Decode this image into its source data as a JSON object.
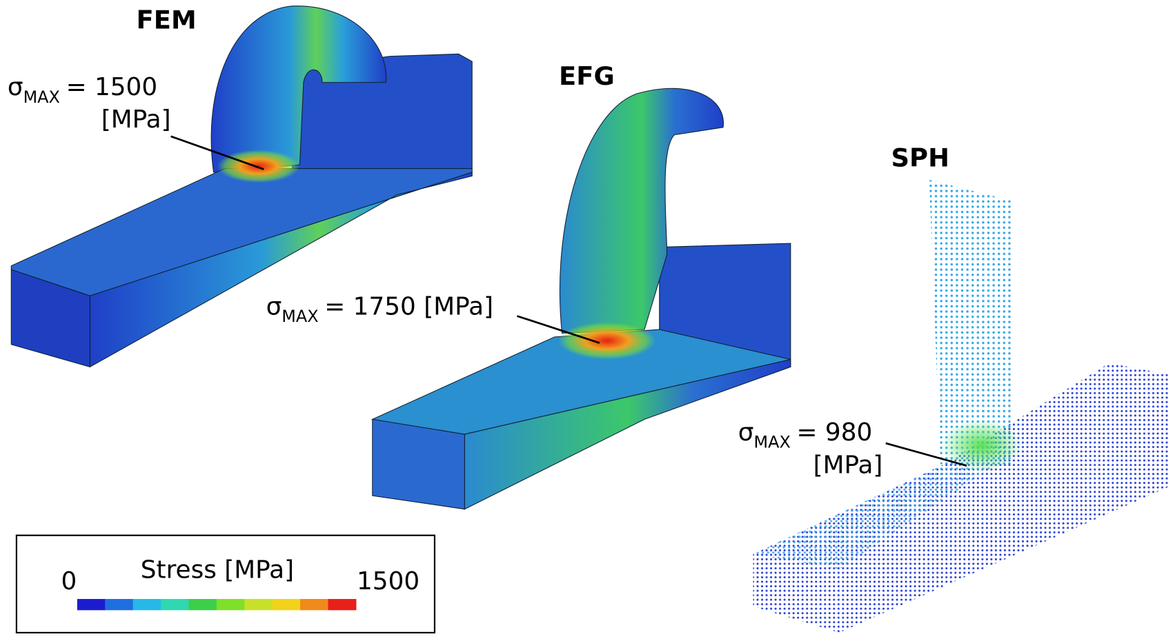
{
  "panels": [
    {
      "title": "FEM",
      "annotation": {
        "symbol": "σ",
        "subscript": "MAX",
        "text": "= 1500",
        "unit": "[MPa]"
      }
    },
    {
      "title": "EFG",
      "annotation": {
        "symbol": "σ",
        "subscript": "MAX",
        "text": "= 1750 [MPa]"
      }
    },
    {
      "title": "SPH",
      "annotation": {
        "symbol": "σ",
        "subscript": "MAX",
        "text": "= 980",
        "unit": "[MPa]"
      }
    }
  ],
  "legend": {
    "title": "Stress [MPa]",
    "min_label": "0",
    "max_label": "1500",
    "colors": [
      "#1c1ccf",
      "#1f6fe0",
      "#27b8e8",
      "#2fd8b0",
      "#3ccf4a",
      "#7ee02a",
      "#c8e02a",
      "#f2d21a",
      "#f08a1a",
      "#e8201a"
    ]
  }
}
